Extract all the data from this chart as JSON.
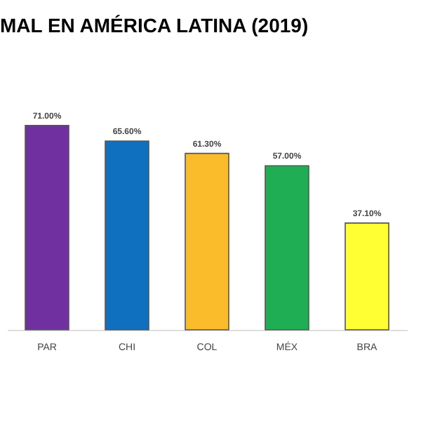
{
  "chart_data": {
    "type": "bar",
    "title": "MAL EN AMÉRICA LATINA (2019)",
    "categories": [
      "PAR",
      "CHI",
      "COL",
      "MÉX",
      "BRA"
    ],
    "values": [
      71.0,
      65.6,
      61.3,
      57.0,
      37.1
    ],
    "colors": [
      "#7030a0",
      "#1070c0",
      "#fbbc2c",
      "#1fae54",
      "#ffff33"
    ],
    "value_labels": [
      "71.00%",
      "65.60%",
      "61.30%",
      "57.00%",
      "37.10%"
    ],
    "grid": false
  }
}
